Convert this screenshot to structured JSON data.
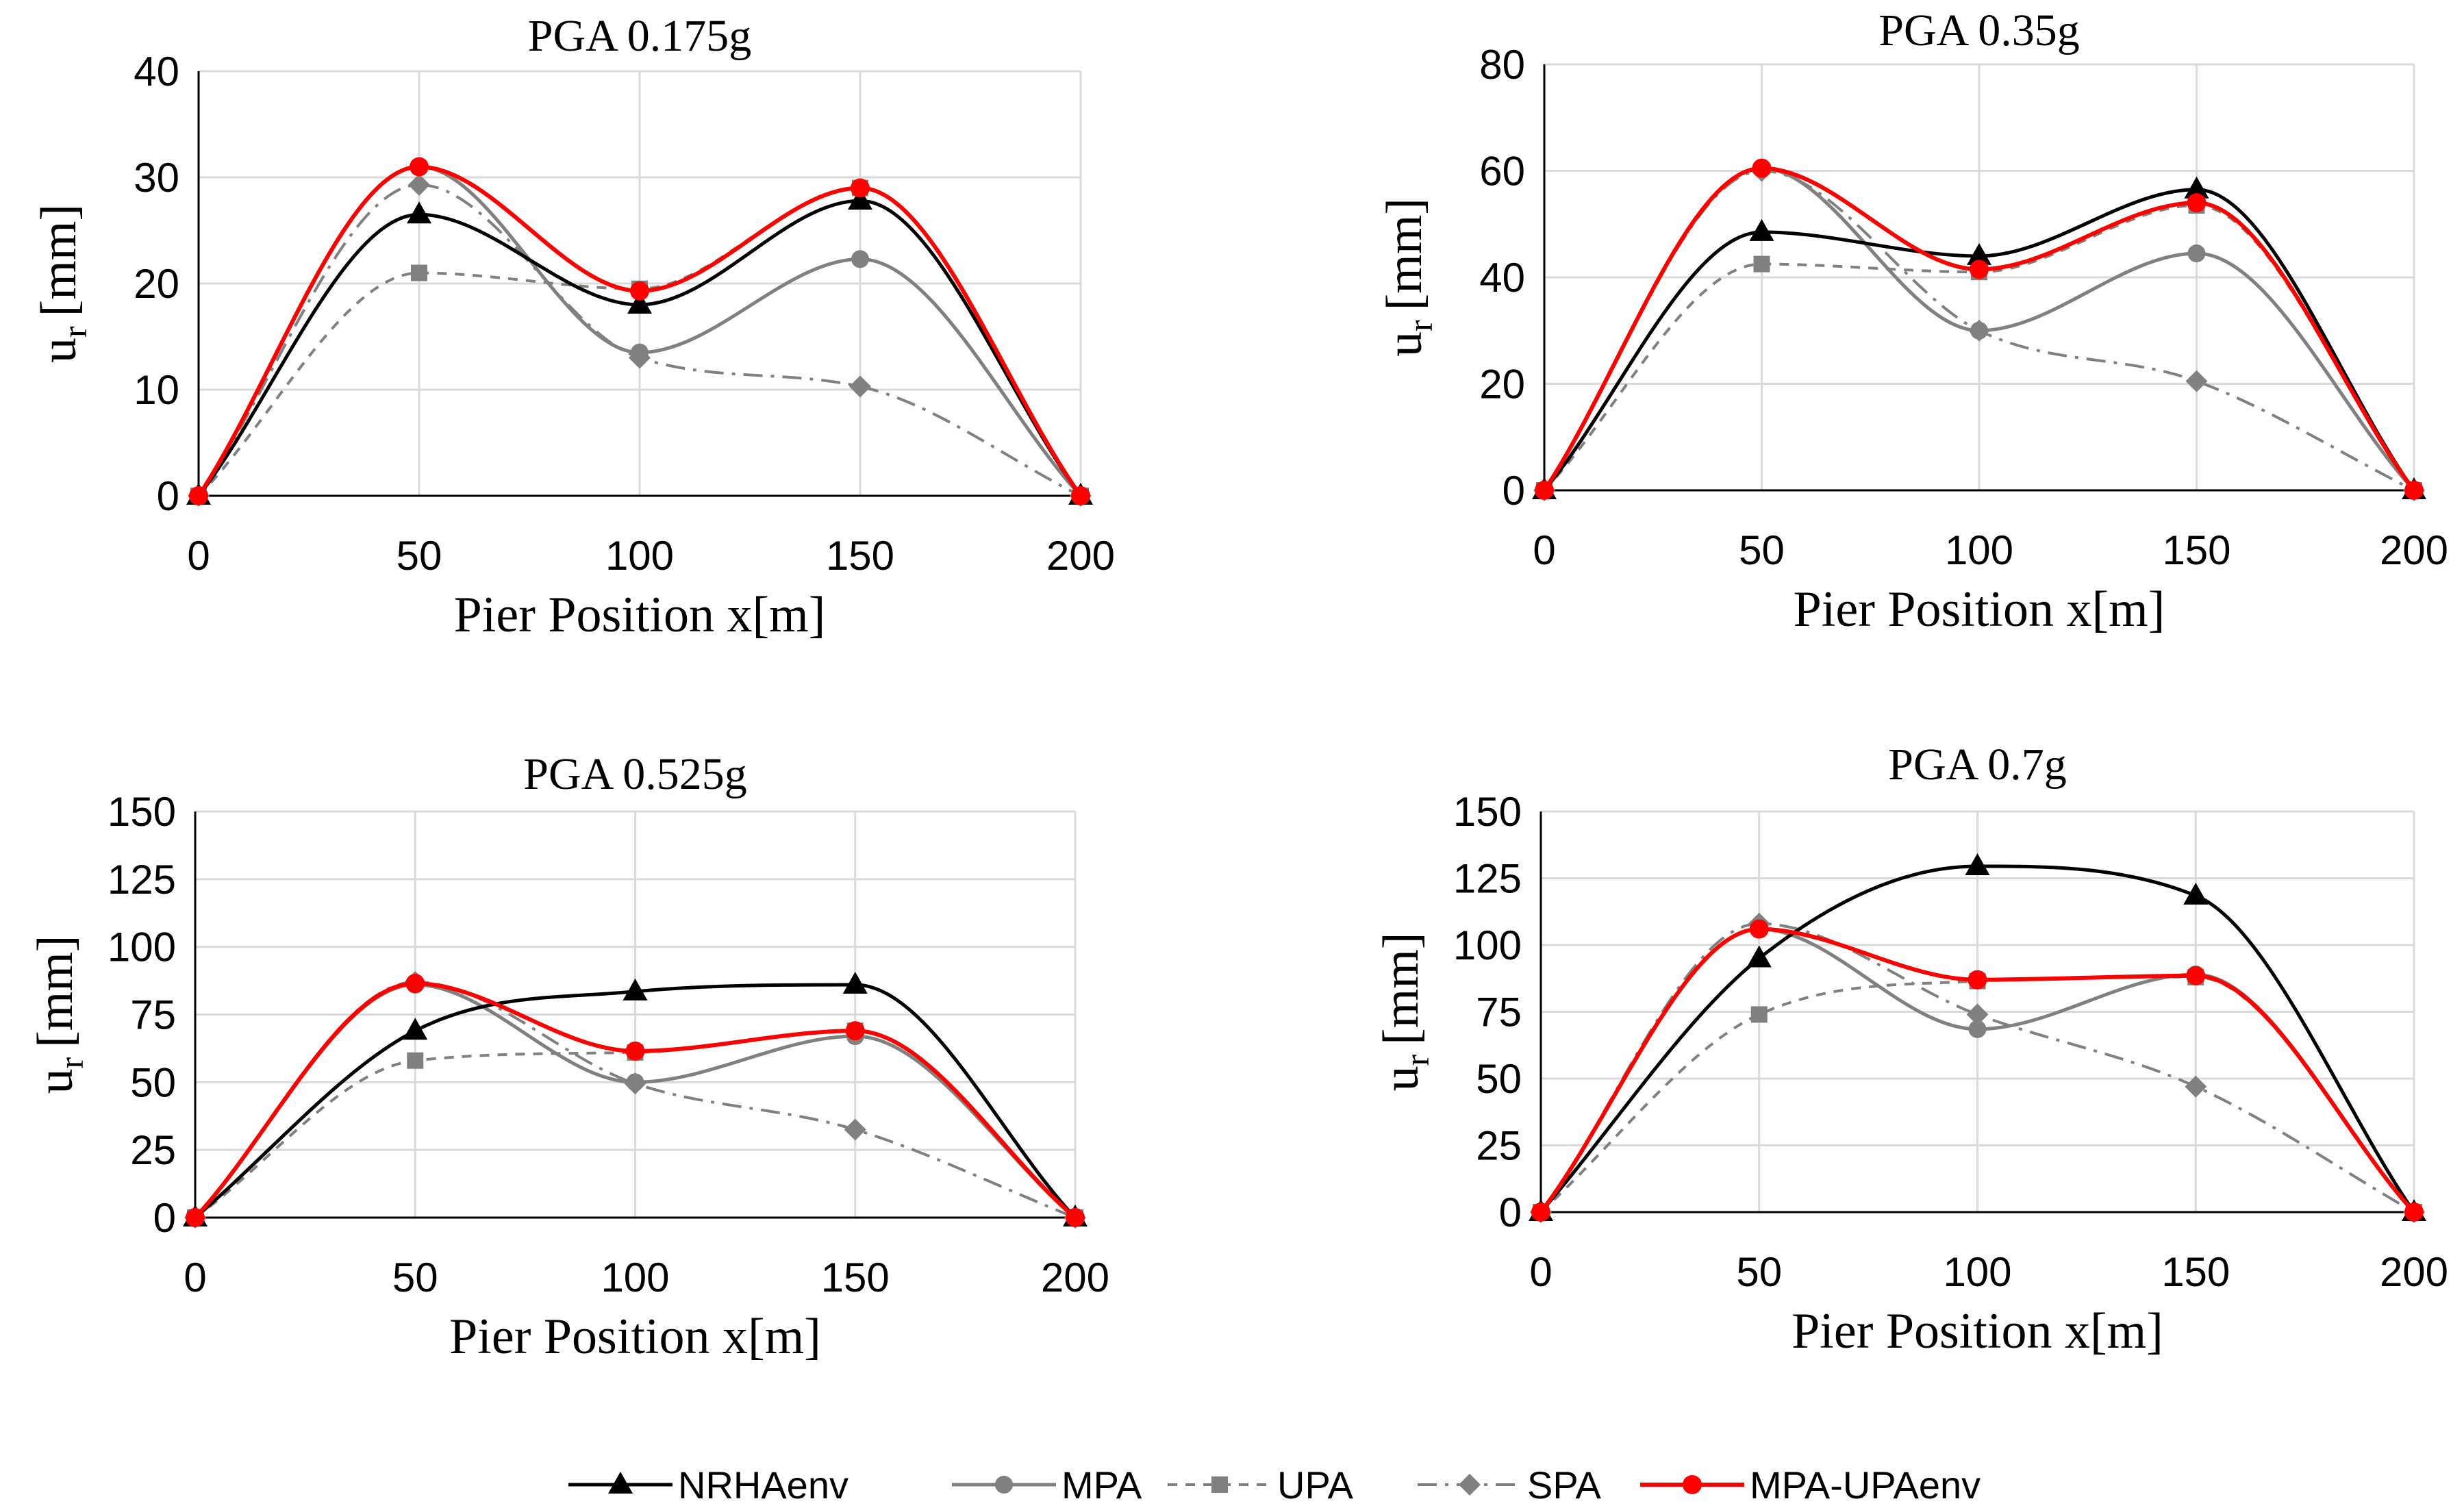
{
  "series_styles": [
    {
      "key": "NRHAenv",
      "color": "#000000",
      "dash": "",
      "marker": "triangle",
      "width": 5
    },
    {
      "key": "MPA",
      "color": "#808080",
      "dash": "",
      "marker": "circle",
      "width": 5
    },
    {
      "key": "UPA",
      "color": "#808080",
      "dash": "14 12",
      "marker": "square",
      "width": 4
    },
    {
      "key": "SPA",
      "color": "#808080",
      "dash": "28 12 5 12",
      "marker": "diamond",
      "width": 4
    },
    {
      "key": "MPA-UPAenv",
      "color": "#ff0000",
      "dash": "",
      "marker": "circle-filled",
      "width": 6
    }
  ],
  "legend": [
    "NRHAenv",
    "MPA",
    "UPA",
    "SPA",
    "MPA-UPAenv"
  ],
  "chart_data": [
    {
      "type": "line",
      "title": "PGA 0.175g",
      "xlabel": "Pier Position x[m]",
      "ylabel_main": "u",
      "ylabel_sub": "r",
      "ylabel_unit": "[mm]",
      "x": [
        0,
        50,
        100,
        150,
        200
      ],
      "x_ticks": [
        "0",
        "50",
        "100",
        "150",
        "200"
      ],
      "ylim": [
        0,
        40
      ],
      "y_ticks": [
        "0",
        "10",
        "20",
        "30",
        "40"
      ],
      "y_tick_values": [
        0,
        10,
        20,
        30,
        40
      ],
      "series": [
        {
          "name": "NRHAenv",
          "values": [
            0,
            26.5,
            18,
            27.8,
            0
          ]
        },
        {
          "name": "MPA",
          "values": [
            0,
            31,
            13.5,
            22.3,
            0
          ]
        },
        {
          "name": "UPA",
          "values": [
            0,
            21,
            19.5,
            29,
            0
          ]
        },
        {
          "name": "SPA",
          "values": [
            0,
            29.3,
            13,
            10.3,
            0
          ]
        },
        {
          "name": "MPA-UPAenv",
          "values": [
            0,
            31,
            19.3,
            29,
            0
          ]
        }
      ]
    },
    {
      "type": "line",
      "title": "PGA 0.35g",
      "xlabel": "Pier Position x[m]",
      "ylabel_main": "u",
      "ylabel_sub": "r",
      "ylabel_unit": "[mm]",
      "x": [
        0,
        50,
        100,
        150,
        200
      ],
      "x_ticks": [
        "0",
        "50",
        "100",
        "150",
        "200"
      ],
      "ylim": [
        0,
        80
      ],
      "y_ticks": [
        "0",
        "20",
        "40",
        "60",
        "80"
      ],
      "y_tick_values": [
        0,
        20,
        40,
        60,
        80
      ],
      "series": [
        {
          "name": "NRHAenv",
          "values": [
            0,
            48.5,
            44,
            56.5,
            0
          ]
        },
        {
          "name": "MPA",
          "values": [
            0,
            60.5,
            30,
            44.5,
            0
          ]
        },
        {
          "name": "UPA",
          "values": [
            0,
            42.5,
            41,
            53.5,
            0
          ]
        },
        {
          "name": "SPA",
          "values": [
            0,
            60,
            30,
            20.5,
            0
          ]
        },
        {
          "name": "MPA-UPAenv",
          "values": [
            0,
            60.5,
            41.5,
            54,
            0
          ]
        }
      ]
    },
    {
      "type": "line",
      "title": "PGA 0.525g",
      "xlabel": "Pier Position x[m]",
      "ylabel_main": "u",
      "ylabel_sub": "r",
      "ylabel_unit": "[mm]",
      "x": [
        0,
        50,
        100,
        150,
        200
      ],
      "x_ticks": [
        "0",
        "50",
        "100",
        "150",
        "200"
      ],
      "ylim": [
        0,
        150
      ],
      "y_ticks": [
        "0",
        "25",
        "50",
        "75",
        "100",
        "125",
        "150"
      ],
      "y_tick_values": [
        0,
        25,
        50,
        75,
        100,
        125,
        150
      ],
      "series": [
        {
          "name": "NRHAenv",
          "values": [
            0,
            69,
            83.5,
            86,
            0
          ]
        },
        {
          "name": "MPA",
          "values": [
            0,
            86,
            50,
            67,
            0
          ]
        },
        {
          "name": "UPA",
          "values": [
            0,
            58,
            61,
            69,
            0
          ]
        },
        {
          "name": "SPA",
          "values": [
            0,
            87,
            49.5,
            32.5,
            0
          ]
        },
        {
          "name": "MPA-UPAenv",
          "values": [
            0,
            86.5,
            61.5,
            69,
            0
          ]
        }
      ]
    },
    {
      "type": "line",
      "title": "PGA 0.7g",
      "xlabel": "Pier Position x[m]",
      "ylabel_main": "u",
      "ylabel_sub": "r",
      "ylabel_unit": "[mm]",
      "x": [
        0,
        50,
        100,
        150,
        200
      ],
      "x_ticks": [
        "0",
        "50",
        "100",
        "150",
        "200"
      ],
      "ylim": [
        0,
        150
      ],
      "y_ticks": [
        "0",
        "25",
        "50",
        "75",
        "100",
        "125",
        "150"
      ],
      "y_tick_values": [
        0,
        25,
        50,
        75,
        100,
        125,
        150
      ],
      "series": [
        {
          "name": "NRHAenv",
          "values": [
            0,
            95,
            129.5,
            118.5,
            0
          ]
        },
        {
          "name": "MPA",
          "values": [
            0,
            106,
            68.5,
            89,
            0
          ]
        },
        {
          "name": "UPA",
          "values": [
            0,
            74,
            86.5,
            88,
            0
          ]
        },
        {
          "name": "SPA",
          "values": [
            0,
            108,
            74,
            47,
            0
          ]
        },
        {
          "name": "MPA-UPAenv",
          "values": [
            0,
            106,
            87,
            88.5,
            0
          ]
        }
      ]
    }
  ]
}
